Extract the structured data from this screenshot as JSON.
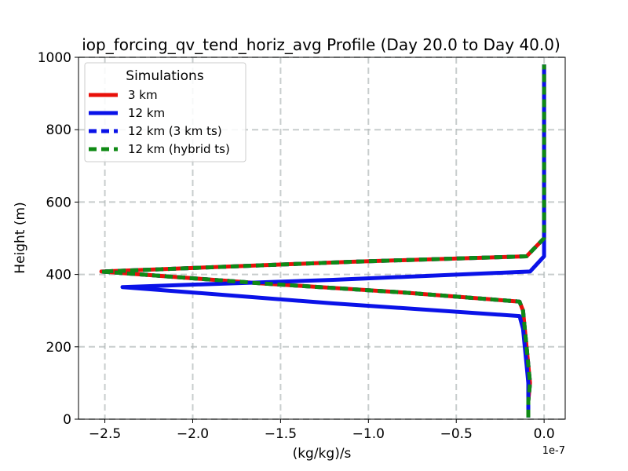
{
  "chart_data": {
    "type": "line",
    "title": "iop_forcing_qv_tend_horiz_avg Profile (Day 20.0 to Day 40.0)",
    "xlabel": "(kg/kg)/s",
    "ylabel": "Height (m)",
    "x_offset_label": "1e-7",
    "x_scale": 1e-07,
    "xlim": [
      -2.65,
      0.12
    ],
    "ylim": [
      0,
      1000
    ],
    "xticks": [
      -2.5,
      -2.0,
      -1.5,
      -1.0,
      -0.5,
      0.0
    ],
    "xtick_labels": [
      "−2.5",
      "−2.0",
      "−1.5",
      "−1.0",
      "−0.5",
      "0.0"
    ],
    "yticks": [
      0,
      200,
      400,
      600,
      800,
      1000
    ],
    "ytick_labels": [
      "0",
      "200",
      "400",
      "600",
      "800",
      "1000"
    ],
    "grid": true,
    "legend": {
      "title": "Simulations",
      "placement": "upper-left"
    },
    "series": [
      {
        "name": "3 km",
        "color": "#e8100a",
        "dash": "solid",
        "points": [
          [
            -0.09,
            5
          ],
          [
            -0.09,
            20
          ],
          [
            -0.09,
            50
          ],
          [
            -0.08,
            100
          ],
          [
            -0.09,
            150
          ],
          [
            -0.1,
            200
          ],
          [
            -0.11,
            250
          ],
          [
            -0.12,
            300
          ],
          [
            -0.14,
            325
          ],
          [
            -0.8,
            350
          ],
          [
            -1.6,
            375
          ],
          [
            -2.52,
            408
          ],
          [
            -1.1,
            435
          ],
          [
            -0.1,
            450
          ],
          [
            0.0,
            500
          ],
          [
            0.0,
            550
          ],
          [
            0.0,
            600
          ],
          [
            0.0,
            700
          ],
          [
            0.0,
            800
          ],
          [
            0.0,
            900
          ],
          [
            0.0,
            980
          ]
        ]
      },
      {
        "name": "12 km",
        "color": "#0a12e8",
        "dash": "solid",
        "points": [
          [
            -0.09,
            5
          ],
          [
            -0.09,
            20
          ],
          [
            -0.09,
            50
          ],
          [
            -0.09,
            100
          ],
          [
            -0.1,
            150
          ],
          [
            -0.11,
            200
          ],
          [
            -0.12,
            250
          ],
          [
            -0.14,
            285
          ],
          [
            -1.2,
            320
          ],
          [
            -2.4,
            365
          ],
          [
            -1.2,
            385
          ],
          [
            -0.08,
            408
          ],
          [
            0.0,
            450
          ],
          [
            0.0,
            500
          ],
          [
            0.0,
            600
          ],
          [
            0.0,
            700
          ],
          [
            0.0,
            800
          ],
          [
            0.0,
            900
          ],
          [
            0.0,
            980
          ]
        ]
      },
      {
        "name": "12 km (3 km ts)",
        "color": "#0a12e8",
        "dash": "dashed",
        "points": [
          [
            -0.09,
            5
          ],
          [
            -0.09,
            20
          ],
          [
            -0.09,
            50
          ],
          [
            -0.08,
            100
          ],
          [
            -0.09,
            150
          ],
          [
            -0.1,
            200
          ],
          [
            -0.11,
            250
          ],
          [
            -0.12,
            300
          ],
          [
            -0.14,
            325
          ],
          [
            -0.8,
            350
          ],
          [
            -1.6,
            375
          ],
          [
            -2.52,
            408
          ],
          [
            -1.1,
            435
          ],
          [
            -0.1,
            450
          ],
          [
            0.0,
            500
          ],
          [
            0.0,
            550
          ],
          [
            0.0,
            600
          ],
          [
            0.0,
            700
          ],
          [
            0.0,
            800
          ],
          [
            0.0,
            900
          ],
          [
            0.0,
            980
          ]
        ]
      },
      {
        "name": "12 km (hybrid ts)",
        "color": "#0f8a14",
        "dash": "dashed",
        "points": [
          [
            -0.09,
            5
          ],
          [
            -0.09,
            20
          ],
          [
            -0.09,
            50
          ],
          [
            -0.08,
            100
          ],
          [
            -0.09,
            150
          ],
          [
            -0.1,
            200
          ],
          [
            -0.11,
            250
          ],
          [
            -0.12,
            300
          ],
          [
            -0.14,
            325
          ],
          [
            -0.8,
            350
          ],
          [
            -1.6,
            375
          ],
          [
            -2.52,
            408
          ],
          [
            -1.1,
            435
          ],
          [
            -0.1,
            450
          ],
          [
            0.0,
            500
          ],
          [
            0.0,
            550
          ],
          [
            0.0,
            600
          ],
          [
            0.0,
            700
          ],
          [
            0.0,
            800
          ],
          [
            0.0,
            900
          ],
          [
            0.0,
            980
          ]
        ]
      }
    ]
  }
}
